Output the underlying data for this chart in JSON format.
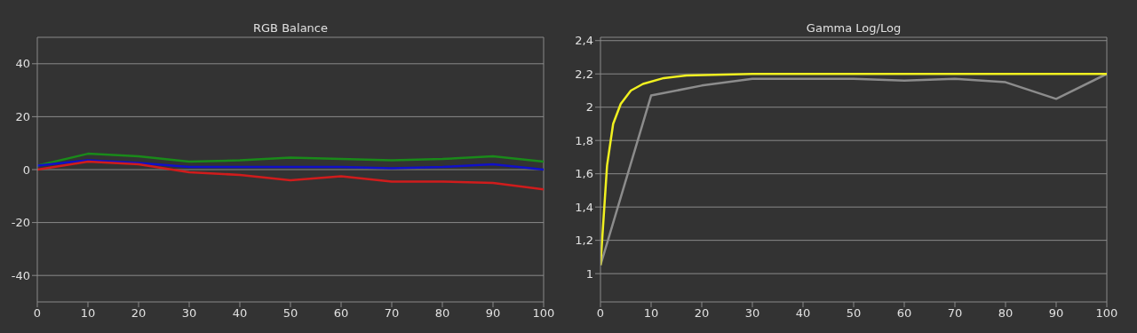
{
  "chart_data": [
    {
      "type": "line",
      "title": "RGB Balance",
      "x": [
        0,
        10,
        20,
        30,
        40,
        50,
        60,
        70,
        80,
        90,
        100
      ],
      "xlim": [
        0,
        100
      ],
      "xticks": [
        0,
        10,
        20,
        30,
        40,
        50,
        60,
        70,
        80,
        90,
        100
      ],
      "ylim": [
        -50,
        50
      ],
      "yticks": [
        -40,
        -20,
        0,
        20,
        40
      ],
      "grid": "y",
      "series": [
        {
          "color": "#1a8a1a",
          "values": [
            1.5,
            6,
            5,
            3,
            3.5,
            4.5,
            4,
            3.5,
            4,
            5,
            3
          ]
        },
        {
          "color": "#1010c8",
          "values": [
            1.5,
            3.5,
            2.5,
            1,
            1,
            1,
            1,
            0.5,
            1,
            2,
            0
          ]
        },
        {
          "color": "#d01c1c",
          "values": [
            0,
            3,
            2,
            -1,
            -2,
            -4,
            -2.5,
            -4.5,
            -4.5,
            -5,
            -7.5
          ]
        }
      ]
    },
    {
      "type": "line",
      "title": "Gamma Log/Log",
      "xlim": [
        0,
        100
      ],
      "xticks": [
        0,
        10,
        20,
        30,
        40,
        50,
        60,
        70,
        80,
        90,
        100
      ],
      "ylim": [
        0.83,
        2.42
      ],
      "yticks": [
        1,
        {
          "value": 1.2,
          "label": "1,2"
        },
        {
          "value": 1.4,
          "label": "1,4"
        },
        {
          "value": 1.6,
          "label": "1,6"
        },
        {
          "value": 1.8,
          "label": "1,8"
        },
        2,
        {
          "value": 2.2,
          "label": "2,2"
        },
        {
          "value": 2.4,
          "label": "2,4"
        }
      ],
      "grid": "y",
      "series": [
        {
          "color": "#8c8c8c",
          "x": [
            0,
            10,
            20,
            30,
            40,
            50,
            60,
            70,
            80,
            90,
            100
          ],
          "values": [
            1.05,
            2.07,
            2.13,
            2.17,
            2.17,
            2.17,
            2.16,
            2.17,
            2.15,
            2.05,
            2.2
          ]
        },
        {
          "color": "#f0f020",
          "x": [
            0,
            1.3,
            2.5,
            4,
            6,
            8.4,
            12.5,
            17,
            30,
            50,
            100
          ],
          "values": [
            1.05,
            1.65,
            1.9,
            2.02,
            2.1,
            2.14,
            2.175,
            2.19,
            2.2,
            2.2,
            2.2
          ]
        }
      ]
    }
  ]
}
